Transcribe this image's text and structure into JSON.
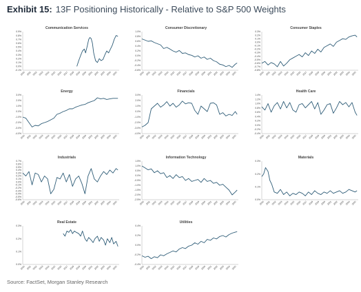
{
  "header": {
    "label": "Exhibit 15:",
    "title": "13F Positioning Historically - Relative to S&P 500 Weights"
  },
  "footer": {
    "source": "Source: FactSet, Morgan Stanley Research"
  },
  "colors": {
    "line": "#2e5c77",
    "axis": "#aaaaaa",
    "text": "#444444"
  },
  "x_tick_labels": [
    "2010",
    "2011",
    "2012",
    "2013",
    "2014",
    "2015",
    "2016",
    "2017",
    "2018",
    "2019",
    "2020",
    "2021",
    "2022",
    "2023",
    "2024",
    "2025"
  ],
  "chart_data": [
    {
      "type": "line",
      "title": "Communication Services",
      "yticks": [
        "0.9%",
        "0.8%",
        "0.7%",
        "0.6%",
        "0.5%",
        "0.4%",
        "0.3%",
        "0.2%",
        "0.1%",
        "0.0%",
        "-0.1%"
      ],
      "ylim": [
        -0.1,
        0.9
      ],
      "x_range": [
        2010,
        2025.5
      ],
      "x": [
        2018.7,
        2019.0,
        2019.3,
        2019.6,
        2019.9,
        2020.1,
        2020.4,
        2020.6,
        2020.8,
        2021.0,
        2021.2,
        2021.4,
        2021.7,
        2022.0,
        2022.3,
        2022.6,
        2022.9,
        2023.2,
        2023.5,
        2023.8,
        2024.1,
        2024.4,
        2024.7,
        2025.0,
        2025.3
      ],
      "values": [
        0.0,
        0.15,
        0.28,
        0.4,
        0.45,
        0.35,
        0.55,
        0.7,
        0.75,
        0.72,
        0.6,
        0.35,
        0.15,
        0.1,
        0.2,
        0.15,
        0.18,
        0.3,
        0.4,
        0.35,
        0.45,
        0.55,
        0.7,
        0.8,
        0.78
      ]
    },
    {
      "type": "line",
      "title": "Consumer Discretionary",
      "yticks": [
        "1.0%",
        "0.8%",
        "0.6%",
        "0.4%",
        "0.2%",
        "0.0%",
        "-0.2%",
        "-0.4%",
        "-0.6%"
      ],
      "ylim": [
        -0.6,
        1.0
      ],
      "x_range": [
        2010,
        2025.5
      ],
      "x": [
        2010.0,
        2010.5,
        2011.0,
        2011.5,
        2012.0,
        2012.5,
        2013.0,
        2013.5,
        2014.0,
        2014.5,
        2015.0,
        2015.5,
        2016.0,
        2016.5,
        2017.0,
        2017.5,
        2018.0,
        2018.5,
        2019.0,
        2019.5,
        2020.0,
        2020.5,
        2021.0,
        2021.5,
        2022.0,
        2022.5,
        2023.0,
        2023.5,
        2024.0,
        2024.5,
        2025.0,
        2025.3
      ],
      "values": [
        0.7,
        0.65,
        0.6,
        0.62,
        0.55,
        0.5,
        0.45,
        0.3,
        0.35,
        0.28,
        0.2,
        0.15,
        0.22,
        0.1,
        0.12,
        0.05,
        0.02,
        -0.05,
        0.0,
        -0.1,
        -0.05,
        -0.15,
        -0.1,
        -0.2,
        -0.25,
        -0.35,
        -0.38,
        -0.45,
        -0.4,
        -0.48,
        -0.35,
        -0.3
      ]
    },
    {
      "type": "line",
      "title": "Consumer Staples",
      "yticks": [
        "0.3%",
        "0.2%",
        "0.1%",
        "0.0%",
        "-0.1%",
        "-0.2%",
        "-0.3%",
        "-0.4%",
        "-0.5%",
        "-0.6%",
        "-0.7%",
        "-0.8%"
      ],
      "ylim": [
        -0.8,
        0.3
      ],
      "x_range": [
        2010,
        2025.5
      ],
      "x": [
        2010.0,
        2010.5,
        2011.0,
        2011.5,
        2012.0,
        2012.5,
        2013.0,
        2013.5,
        2014.0,
        2014.5,
        2015.0,
        2015.5,
        2016.0,
        2016.5,
        2017.0,
        2017.5,
        2018.0,
        2018.5,
        2019.0,
        2019.5,
        2020.0,
        2020.5,
        2021.0,
        2021.5,
        2022.0,
        2022.5,
        2023.0,
        2023.5,
        2024.0,
        2024.5,
        2025.0,
        2025.3
      ],
      "values": [
        -0.6,
        -0.55,
        -0.65,
        -0.58,
        -0.62,
        -0.7,
        -0.55,
        -0.68,
        -0.6,
        -0.5,
        -0.45,
        -0.4,
        -0.35,
        -0.42,
        -0.3,
        -0.38,
        -0.25,
        -0.32,
        -0.2,
        -0.28,
        -0.15,
        -0.1,
        -0.05,
        -0.12,
        0.0,
        0.05,
        0.1,
        0.08,
        0.15,
        0.18,
        0.2,
        0.15
      ]
    },
    {
      "type": "line",
      "title": "Energy",
      "yticks": [
        "3.0%",
        "2.0%",
        "1.0%",
        "0.0%",
        "-1.0%",
        "-2.0%",
        "-3.0%",
        "-4.0%"
      ],
      "ylim": [
        -4.0,
        3.0
      ],
      "x_range": [
        2010,
        2025.5
      ],
      "x": [
        2010.0,
        2010.5,
        2011.0,
        2011.5,
        2012.0,
        2012.5,
        2013.0,
        2013.5,
        2014.0,
        2014.5,
        2015.0,
        2015.5,
        2016.0,
        2016.5,
        2017.0,
        2017.5,
        2018.0,
        2018.5,
        2019.0,
        2019.5,
        2020.0,
        2020.5,
        2021.0,
        2021.5,
        2022.0,
        2022.5,
        2023.0,
        2023.5,
        2024.0,
        2024.5,
        2025.0,
        2025.3
      ],
      "values": [
        -1.0,
        -1.2,
        -2.0,
        -2.8,
        -2.5,
        -2.6,
        -2.2,
        -2.0,
        -1.8,
        -1.5,
        -1.2,
        -0.5,
        -0.3,
        0.0,
        0.2,
        0.5,
        0.5,
        0.8,
        1.0,
        1.2,
        1.3,
        1.6,
        1.8,
        2.0,
        2.5,
        2.3,
        2.4,
        2.2,
        2.3,
        2.4,
        2.4,
        2.4
      ]
    },
    {
      "type": "line",
      "title": "Financials",
      "yticks": [
        "3.0%",
        "2.0%",
        "1.0%",
        "0.0%",
        "-1.0%",
        "-2.0%",
        "-3.0%",
        "-4.0%"
      ],
      "ylim": [
        -4.0,
        3.0
      ],
      "x_range": [
        2010,
        2025.5
      ],
      "x": [
        2010.0,
        2010.5,
        2011.0,
        2011.5,
        2012.0,
        2012.5,
        2013.0,
        2013.5,
        2014.0,
        2014.5,
        2015.0,
        2015.5,
        2016.0,
        2016.5,
        2017.0,
        2017.5,
        2018.0,
        2018.5,
        2019.0,
        2019.5,
        2020.0,
        2020.5,
        2021.0,
        2021.5,
        2022.0,
        2022.5,
        2023.0,
        2023.5,
        2024.0,
        2024.5,
        2025.0,
        2025.3
      ],
      "values": [
        -2.8,
        -2.5,
        -2.0,
        0.5,
        1.0,
        1.5,
        0.8,
        1.2,
        1.8,
        1.0,
        1.5,
        0.8,
        1.2,
        1.9,
        1.4,
        1.6,
        1.5,
        0.2,
        -0.5,
        1.0,
        0.5,
        0.0,
        1.5,
        1.6,
        1.2,
        -0.5,
        -0.2,
        -0.8,
        -0.5,
        -0.7,
        0.0,
        -0.5
      ]
    },
    {
      "type": "line",
      "title": "Health Care",
      "yticks": [
        "1.4%",
        "1.2%",
        "1.0%",
        "0.8%",
        "0.6%",
        "0.4%",
        "0.2%",
        "0.0%",
        "-0.2%",
        "-0.4%"
      ],
      "ylim": [
        -0.4,
        1.4
      ],
      "x_range": [
        2010,
        2025.5
      ],
      "x": [
        2010.0,
        2010.5,
        2011.0,
        2011.5,
        2012.0,
        2012.5,
        2013.0,
        2013.5,
        2014.0,
        2014.5,
        2015.0,
        2015.5,
        2016.0,
        2016.5,
        2017.0,
        2017.5,
        2018.0,
        2018.5,
        2019.0,
        2019.5,
        2020.0,
        2020.5,
        2021.0,
        2021.5,
        2022.0,
        2022.5,
        2023.0,
        2023.5,
        2024.0,
        2024.5,
        2025.0,
        2025.3
      ],
      "values": [
        0.85,
        0.7,
        1.0,
        0.6,
        0.9,
        1.05,
        0.75,
        1.1,
        0.8,
        1.05,
        0.7,
        0.6,
        0.95,
        1.0,
        0.8,
        0.95,
        1.1,
        0.75,
        1.05,
        0.5,
        0.7,
        0.95,
        1.0,
        0.55,
        0.8,
        1.1,
        0.95,
        1.05,
        0.85,
        1.05,
        0.6,
        0.45
      ]
    },
    {
      "type": "line",
      "title": "Industrials",
      "yticks": [
        "0.7%",
        "0.6%",
        "0.5%",
        "0.4%",
        "0.3%",
        "0.2%",
        "0.1%",
        "0.0%",
        "-0.1%",
        "-0.2%",
        "-0.3%",
        "-0.4%",
        "-0.5%",
        "-0.6%"
      ],
      "ylim": [
        -0.6,
        0.7
      ],
      "x_range": [
        2010,
        2025.5
      ],
      "x": [
        2010.0,
        2010.5,
        2011.0,
        2011.5,
        2012.0,
        2012.5,
        2013.0,
        2013.5,
        2014.0,
        2014.5,
        2015.0,
        2015.5,
        2016.0,
        2016.5,
        2017.0,
        2017.5,
        2018.0,
        2018.5,
        2019.0,
        2019.5,
        2020.0,
        2020.5,
        2021.0,
        2021.5,
        2022.0,
        2022.5,
        2023.0,
        2023.5,
        2024.0,
        2024.5,
        2025.0,
        2025.3
      ],
      "values": [
        0.3,
        0.2,
        0.35,
        -0.1,
        0.3,
        0.25,
        0.0,
        0.2,
        0.1,
        -0.4,
        -0.25,
        0.15,
        0.1,
        0.3,
        0.0,
        0.25,
        -0.15,
        0.1,
        0.2,
        -0.05,
        -0.4,
        0.2,
        0.45,
        0.1,
        0.0,
        0.2,
        0.35,
        0.25,
        0.4,
        0.3,
        0.45,
        0.4
      ]
    },
    {
      "type": "line",
      "title": "Information Technology",
      "yticks": [
        "1.5%",
        "1.0%",
        "0.5%",
        "0.0%",
        "-0.5%",
        "-1.0%",
        "-1.5%",
        "-2.0%",
        "-2.5%"
      ],
      "ylim": [
        -2.5,
        1.5
      ],
      "x_range": [
        2010,
        2025.5
      ],
      "x": [
        2010.0,
        2010.5,
        2011.0,
        2011.5,
        2012.0,
        2012.5,
        2013.0,
        2013.5,
        2014.0,
        2014.5,
        2015.0,
        2015.5,
        2016.0,
        2016.5,
        2017.0,
        2017.5,
        2018.0,
        2018.5,
        2019.0,
        2019.5,
        2020.0,
        2020.5,
        2021.0,
        2021.5,
        2022.0,
        2022.5,
        2023.0,
        2023.5,
        2024.0,
        2024.5,
        2025.0,
        2025.3
      ],
      "values": [
        1.0,
        0.8,
        0.6,
        0.7,
        0.3,
        0.5,
        0.2,
        0.3,
        -0.2,
        0.0,
        -0.3,
        0.1,
        -0.2,
        -0.1,
        -0.5,
        -0.3,
        -0.6,
        -0.5,
        -0.4,
        -0.7,
        -0.3,
        -0.6,
        -0.5,
        -0.8,
        -0.7,
        -1.0,
        -0.9,
        -1.2,
        -1.5,
        -2.0,
        -1.7,
        -1.5
      ]
    },
    {
      "type": "line",
      "title": "Materials",
      "yticks": [
        "0.3%",
        "0.2%",
        "0.1%",
        "0.0%"
      ],
      "ylim": [
        0.0,
        0.3
      ],
      "x_range": [
        2010,
        2025.5
      ],
      "x": [
        2010.0,
        2010.3,
        2010.6,
        2011.0,
        2011.3,
        2011.6,
        2012.0,
        2012.5,
        2013.0,
        2013.5,
        2014.0,
        2014.5,
        2015.0,
        2015.5,
        2016.0,
        2016.5,
        2017.0,
        2017.5,
        2018.0,
        2018.5,
        2019.0,
        2019.5,
        2020.0,
        2020.5,
        2021.0,
        2021.5,
        2022.0,
        2022.5,
        2023.0,
        2023.5,
        2024.0,
        2024.5,
        2025.0,
        2025.3
      ],
      "values": [
        0.18,
        0.2,
        0.25,
        0.22,
        0.15,
        0.12,
        0.06,
        0.05,
        0.08,
        0.04,
        0.06,
        0.03,
        0.05,
        0.04,
        0.06,
        0.05,
        0.03,
        0.06,
        0.04,
        0.07,
        0.05,
        0.04,
        0.06,
        0.05,
        0.07,
        0.05,
        0.06,
        0.07,
        0.05,
        0.06,
        0.08,
        0.07,
        0.06,
        0.07
      ]
    },
    {
      "type": "line",
      "title": "Real Estate",
      "yticks": [
        "0.3%",
        "0.2%",
        "0.1%",
        "0.0%"
      ],
      "ylim": [
        0.0,
        0.3
      ],
      "x_range": [
        2010,
        2025.5
      ],
      "x": [
        2016.5,
        2016.8,
        2017.1,
        2017.4,
        2017.7,
        2018.0,
        2018.3,
        2018.6,
        2019.0,
        2019.3,
        2019.6,
        2020.0,
        2020.3,
        2020.6,
        2021.0,
        2021.3,
        2021.6,
        2022.0,
        2022.3,
        2022.6,
        2023.0,
        2023.3,
        2023.6,
        2024.0,
        2024.3,
        2024.6,
        2025.0,
        2025.3
      ],
      "values": [
        0.24,
        0.22,
        0.26,
        0.25,
        0.27,
        0.24,
        0.26,
        0.25,
        0.24,
        0.22,
        0.26,
        0.2,
        0.18,
        0.21,
        0.19,
        0.17,
        0.2,
        0.22,
        0.18,
        0.21,
        0.19,
        0.15,
        0.2,
        0.17,
        0.21,
        0.16,
        0.18,
        0.14
      ]
    },
    {
      "type": "line",
      "title": "Utilities",
      "yticks": [
        "0.4%",
        "0.2%",
        "0.0%",
        "-0.2%",
        "-0.4%"
      ],
      "ylim": [
        -0.4,
        0.4
      ],
      "x_range": [
        2010,
        2025.5
      ],
      "x": [
        2010.0,
        2010.5,
        2011.0,
        2011.5,
        2012.0,
        2012.5,
        2013.0,
        2013.5,
        2014.0,
        2014.5,
        2015.0,
        2015.5,
        2016.0,
        2016.5,
        2017.0,
        2017.5,
        2018.0,
        2018.5,
        2019.0,
        2019.5,
        2020.0,
        2020.5,
        2021.0,
        2021.5,
        2022.0,
        2022.5,
        2023.0,
        2023.5,
        2024.0,
        2024.5,
        2025.0,
        2025.3
      ],
      "values": [
        -0.22,
        -0.25,
        -0.23,
        -0.28,
        -0.24,
        -0.26,
        -0.2,
        -0.22,
        -0.18,
        -0.15,
        -0.12,
        -0.14,
        -0.08,
        -0.05,
        -0.07,
        -0.02,
        0.0,
        0.05,
        0.02,
        0.08,
        0.05,
        0.12,
        0.1,
        0.15,
        0.13,
        0.18,
        0.2,
        0.17,
        0.22,
        0.25,
        0.27,
        0.28
      ]
    }
  ]
}
